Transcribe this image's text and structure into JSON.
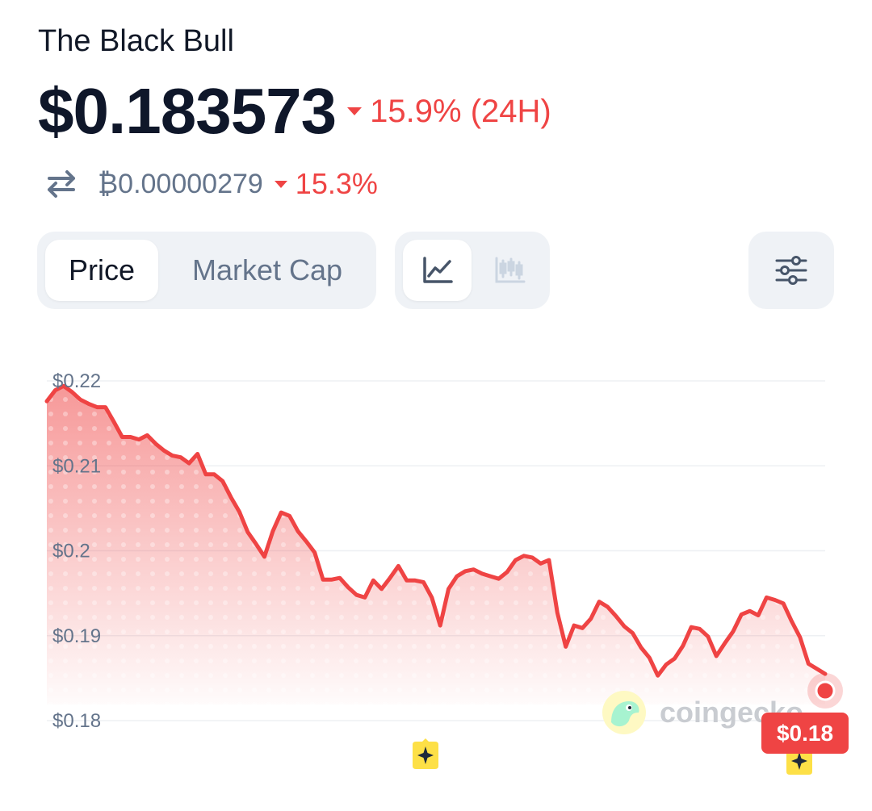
{
  "coin": {
    "name": "The Black Bull"
  },
  "price": {
    "value": "$0.183573",
    "change": "15.9% (24H)",
    "direction": "down"
  },
  "btc": {
    "value": "₿0.00000279",
    "change": "15.3%",
    "direction": "down"
  },
  "tabs": {
    "metric": [
      "Price",
      "Market Cap"
    ],
    "active_metric": "Price",
    "chart_type_active": "line"
  },
  "icons": {
    "swap": "swap-arrows-icon",
    "line": "line-chart-icon",
    "candle": "candlestick-chart-icon",
    "settings": "sliders-icon",
    "event": "sparkle-event-icon",
    "watermark": "gecko-logo-icon"
  },
  "watermark": {
    "text": "coingecko"
  },
  "current_price_tag": "$0.18",
  "colors": {
    "line": "#ef4444",
    "text_primary": "#0f172a",
    "muted": "#64748b",
    "background_pill": "#eff2f6",
    "event": "#fde047"
  },
  "chart_data": {
    "type": "area",
    "y_ticks": [
      "$0.22",
      "$0.21",
      "$0.2",
      "$0.19",
      "$0.18"
    ],
    "ylim": [
      0.18,
      0.22
    ],
    "grid": true,
    "series": [
      {
        "values": [
          0.2176,
          0.2189,
          0.2194,
          0.2187,
          0.2178,
          0.2173,
          0.2169,
          0.2169,
          0.2152,
          0.2134,
          0.2134,
          0.2131,
          0.2136,
          0.2126,
          0.2118,
          0.2112,
          0.211,
          0.2103,
          0.2114,
          0.209,
          0.209,
          0.2082,
          0.2063,
          0.2046,
          0.2022,
          0.2008,
          0.1993,
          0.2023,
          0.2045,
          0.2041,
          0.2023,
          0.2011,
          0.1998,
          0.1966,
          0.1966,
          0.1968,
          0.1957,
          0.1948,
          0.1945,
          0.1965,
          0.1955,
          0.1968,
          0.1982,
          0.1965,
          0.1965,
          0.1963,
          0.1945,
          0.1912,
          0.1955,
          0.197,
          0.1976,
          0.1978,
          0.1973,
          0.197,
          0.1967,
          0.1975,
          0.1989,
          0.1994,
          0.1992,
          0.1985,
          0.1989,
          0.1927,
          0.1887,
          0.1912,
          0.1909,
          0.192,
          0.194,
          0.1934,
          0.1923,
          0.1911,
          0.1903,
          0.1886,
          0.1874,
          0.1853,
          0.1866,
          0.1873,
          0.1888,
          0.191,
          0.1908,
          0.1899,
          0.1876,
          0.1891,
          0.1905,
          0.1925,
          0.1929,
          0.1924,
          0.1945,
          0.1942,
          0.1938,
          0.1917,
          0.1898,
          0.1867,
          0.1861,
          0.1855
        ]
      }
    ]
  }
}
